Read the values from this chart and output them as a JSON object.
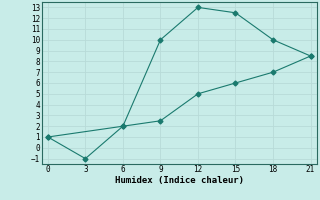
{
  "line1_x": [
    0,
    6,
    9,
    12,
    15,
    18,
    21
  ],
  "line1_y": [
    1,
    2,
    10,
    13,
    12.5,
    10,
    8.5
  ],
  "line2_x": [
    0,
    3,
    6,
    9,
    12,
    15,
    18,
    21
  ],
  "line2_y": [
    1,
    -1,
    2,
    2.5,
    5,
    6,
    7,
    8.5
  ],
  "line_color": "#1a7a6e",
  "bg_color": "#c8ece8",
  "grid_color": "#b8dbd8",
  "xlabel": "Humidex (Indice chaleur)",
  "xlim": [
    -0.5,
    21.5
  ],
  "ylim": [
    -1.5,
    13.5
  ],
  "xticks": [
    0,
    3,
    6,
    9,
    12,
    15,
    18,
    21
  ],
  "yticks": [
    -1,
    0,
    1,
    2,
    3,
    4,
    5,
    6,
    7,
    8,
    9,
    10,
    11,
    12,
    13
  ],
  "marker": "D",
  "markersize": 2.5,
  "linewidth": 0.8,
  "font_family": "monospace",
  "label_fontsize": 6.5,
  "tick_fontsize": 5.5
}
